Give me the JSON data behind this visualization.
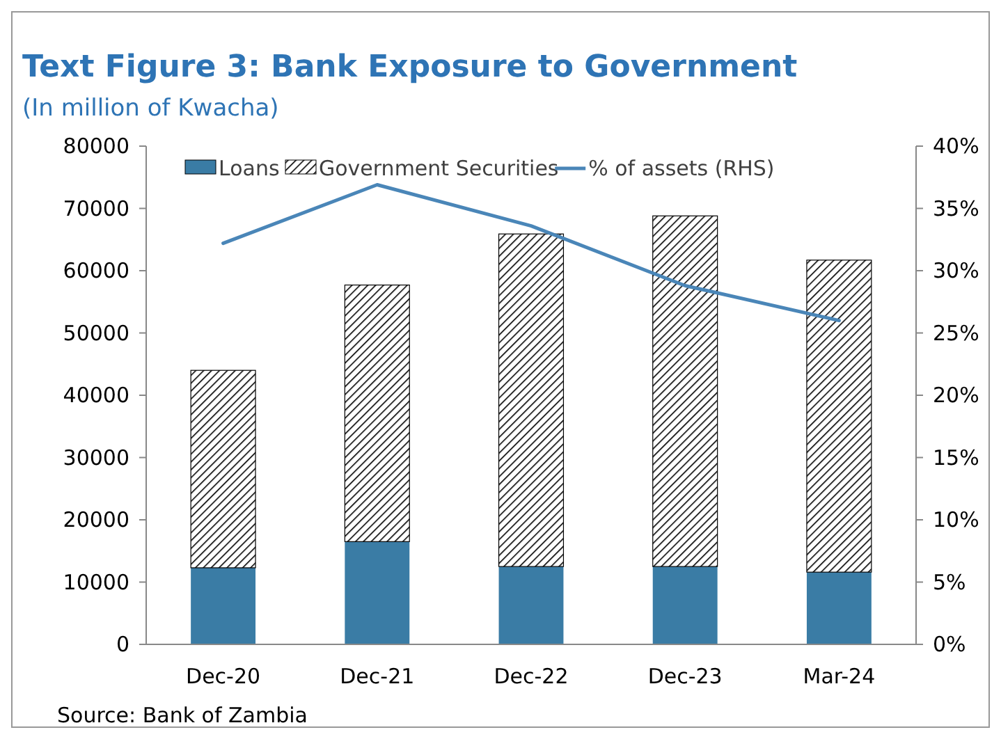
{
  "chart_data": {
    "type": "bar",
    "title": "Text Figure 3: Bank Exposure to Government",
    "subtitle": "(In million of Kwacha)",
    "categories": [
      "Dec-20",
      "Dec-21",
      "Dec-22",
      "Dec-23",
      "Mar-24"
    ],
    "stacked": true,
    "series": [
      {
        "name": "Loans",
        "color": "#3a7ca5",
        "values": [
          12300,
          16500,
          12500,
          12500,
          11600
        ]
      },
      {
        "name": "Government Securities",
        "color": "#000000",
        "values": [
          31700,
          41200,
          53400,
          56300,
          50100
        ]
      },
      {
        "name": "% of assets (RHS)",
        "type": "line",
        "axis": "y2",
        "color": "#4a86b8",
        "values": [
          32.2,
          36.9,
          33.6,
          28.8,
          26.0
        ]
      }
    ],
    "ylim": [
      0,
      80000
    ],
    "yticks": [
      0,
      10000,
      20000,
      30000,
      40000,
      50000,
      60000,
      70000,
      80000
    ],
    "y2lim": [
      0,
      40
    ],
    "y2ticks": [
      {
        "value": 0,
        "label": "0%"
      },
      {
        "value": 5,
        "label": "5%"
      },
      {
        "value": 10,
        "label": "10%"
      },
      {
        "value": 15,
        "label": "15%"
      },
      {
        "value": 20,
        "label": "20%"
      },
      {
        "value": 25,
        "label": "25%"
      },
      {
        "value": 30,
        "label": "30%"
      },
      {
        "value": 35,
        "label": "35%"
      },
      {
        "value": 40,
        "label": "40%"
      }
    ],
    "legend": "top",
    "annotations": [
      "Source: Bank of Zambia"
    ]
  }
}
